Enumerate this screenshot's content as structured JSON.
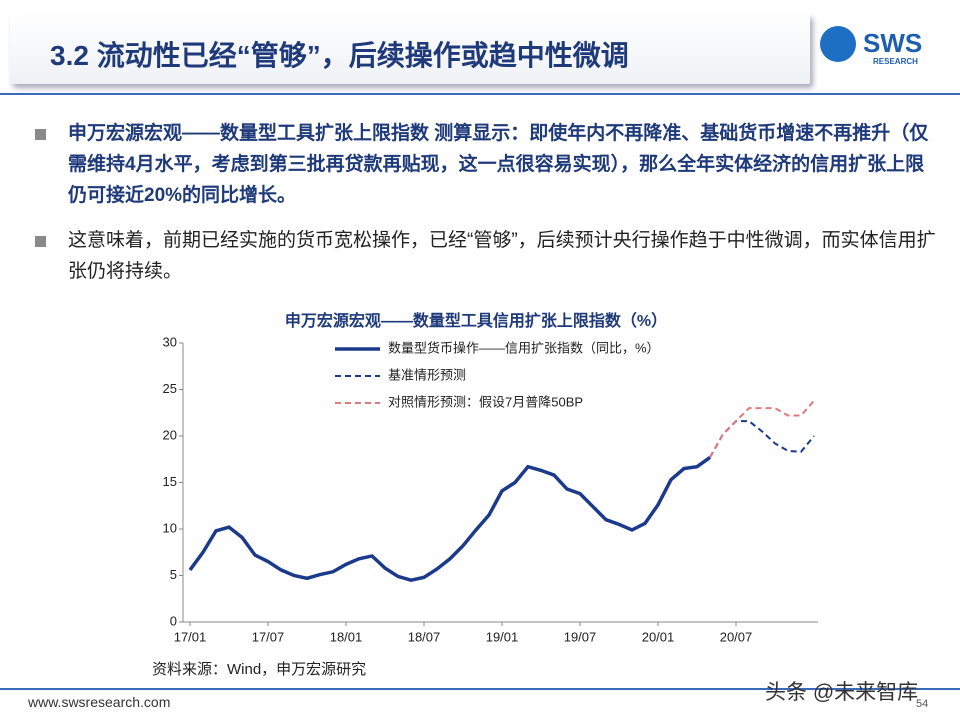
{
  "header": {
    "title": "3.2 流动性已经“管够”，后续操作或趋中性微调",
    "logo": "SWS",
    "logo_sub": "RESEARCH"
  },
  "bullets": [
    "申万宏源宏观——数量型工具扩张上限指数 测算显示：即使年内不再降准、基础货币增速不再推升（仅需维持4月水平，考虑到第三批再贷款再贴现，这一点很容易实现），那么全年实体经济的信用扩张上限仍可接近20%的同比增长。",
    "这意味着，前期已经实施的货币宽松操作，已经“管够”，后续预计央行操作趋于中性微调，而实体信用扩张仍将持续。"
  ],
  "chart_data": {
    "type": "line",
    "title": "申万宏源宏观——数量型工具信用扩张上限指数（%）",
    "categories": [
      "17/01",
      null,
      null,
      null,
      null,
      null,
      "17/07",
      null,
      null,
      null,
      null,
      null,
      "18/01",
      null,
      null,
      null,
      null,
      null,
      "18/07",
      null,
      null,
      null,
      null,
      null,
      "19/01",
      null,
      null,
      null,
      null,
      null,
      "19/07",
      null,
      null,
      null,
      null,
      null,
      "20/01",
      null,
      null,
      null,
      null,
      null,
      "20/07",
      null,
      null,
      null,
      null,
      null,
      null
    ],
    "series": [
      {
        "name": "数量型货币操作——信用扩张指数（同比，%）",
        "color": "#1b3a8c",
        "dash": false,
        "values": [
          5.6,
          7.5,
          9.8,
          10.2,
          9.1,
          7.2,
          6.5,
          5.6,
          5.0,
          4.7,
          5.1,
          5.4,
          6.2,
          6.8,
          7.1,
          5.8,
          4.9,
          4.5,
          4.8,
          5.7,
          6.8,
          8.2,
          9.9,
          11.5,
          14.1,
          15.0,
          16.7,
          16.3,
          15.8,
          14.3,
          13.8,
          12.4,
          11.0,
          10.5,
          9.9,
          10.6,
          12.6,
          15.3,
          16.5,
          16.7,
          17.7,
          null,
          null,
          null,
          null,
          null,
          null,
          null,
          null
        ]
      },
      {
        "name": "基准情形预测",
        "color": "#1b3a8c",
        "dash": true,
        "values": [
          null,
          null,
          null,
          null,
          null,
          null,
          null,
          null,
          null,
          null,
          null,
          null,
          null,
          null,
          null,
          null,
          null,
          null,
          null,
          null,
          null,
          null,
          null,
          null,
          null,
          null,
          null,
          null,
          null,
          null,
          null,
          null,
          null,
          null,
          null,
          null,
          null,
          null,
          null,
          null,
          17.7,
          20.2,
          21.6,
          21.6,
          20.5,
          19.2,
          18.4,
          18.3,
          20.0
        ]
      },
      {
        "name": "对照情形预测：假设7月普降50BP",
        "color": "#e07a7a",
        "dash": true,
        "values": [
          null,
          null,
          null,
          null,
          null,
          null,
          null,
          null,
          null,
          null,
          null,
          null,
          null,
          null,
          null,
          null,
          null,
          null,
          null,
          null,
          null,
          null,
          null,
          null,
          null,
          null,
          null,
          null,
          null,
          null,
          null,
          null,
          null,
          null,
          null,
          null,
          null,
          null,
          null,
          null,
          17.7,
          20.2,
          21.6,
          23.0,
          23.0,
          23.0,
          22.2,
          22.2,
          23.8
        ]
      }
    ],
    "ylim": [
      0,
      30
    ],
    "yticks": [
      0,
      5,
      10,
      15,
      20,
      25,
      30
    ]
  },
  "source": "资料来源：Wind，申万宏源研究",
  "footer": {
    "url": "www.swsresearch.com",
    "page": "54"
  },
  "watermark": "头条 @未来智库"
}
